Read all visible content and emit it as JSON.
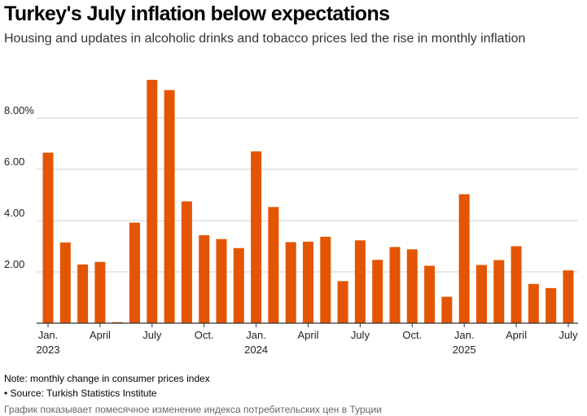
{
  "title": "Turkey's July inflation below expectations",
  "subtitle": "Housing and updates in alcoholic drinks and tobacco prices led the rise in monthly inflation",
  "note": "Note: monthly change in consumer prices index",
  "source": "• Source: Turkish Statistics Institute",
  "caption": "График показывает помесячное изменение индекса потребительских цен в Турции",
  "colors": {
    "bar": "#E35500",
    "grid": "#d0d0d0",
    "axis": "#333333"
  },
  "chart_data": {
    "type": "bar",
    "title": "Turkey's July inflation below expectations",
    "xlabel": "",
    "ylabel": "",
    "ylim": [
      0,
      10
    ],
    "grid": true,
    "yticks": [
      {
        "value": 2,
        "label": "2.00"
      },
      {
        "value": 4,
        "label": "4.00"
      },
      {
        "value": 6,
        "label": "6.00"
      },
      {
        "value": 8,
        "label": "8.00%"
      }
    ],
    "categories": [
      "2023-01",
      "2023-02",
      "2023-03",
      "2023-04",
      "2023-05",
      "2023-06",
      "2023-07",
      "2023-08",
      "2023-09",
      "2023-10",
      "2023-11",
      "2023-12",
      "2024-01",
      "2024-02",
      "2024-03",
      "2024-04",
      "2024-05",
      "2024-06",
      "2024-07",
      "2024-08",
      "2024-09",
      "2024-10",
      "2024-11",
      "2024-12",
      "2025-01",
      "2025-02",
      "2025-03",
      "2025-04",
      "2025-05",
      "2025-06",
      "2025-07"
    ],
    "values": [
      6.65,
      3.15,
      2.29,
      2.39,
      0.04,
      3.92,
      9.49,
      9.09,
      4.75,
      3.43,
      3.28,
      2.93,
      6.7,
      4.53,
      3.16,
      3.18,
      3.37,
      1.64,
      3.23,
      2.47,
      2.97,
      2.88,
      2.24,
      1.03,
      5.03,
      2.27,
      2.46,
      3.0,
      1.53,
      1.37,
      2.06
    ],
    "xticks": [
      {
        "index": 0,
        "label": "Jan.",
        "year": "2023"
      },
      {
        "index": 3,
        "label": "April"
      },
      {
        "index": 6,
        "label": "July"
      },
      {
        "index": 9,
        "label": "Oct."
      },
      {
        "index": 12,
        "label": "Jan.",
        "year": "2024"
      },
      {
        "index": 15,
        "label": "April"
      },
      {
        "index": 18,
        "label": "July"
      },
      {
        "index": 21,
        "label": "Oct."
      },
      {
        "index": 24,
        "label": "Jan.",
        "year": "2025"
      },
      {
        "index": 27,
        "label": "April"
      },
      {
        "index": 30,
        "label": "July"
      }
    ]
  }
}
